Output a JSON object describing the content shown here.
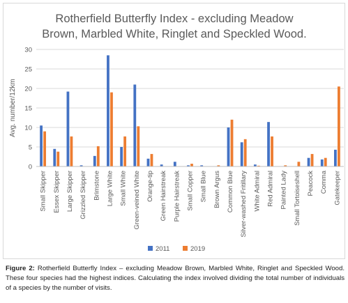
{
  "chart_data": {
    "type": "bar",
    "title": "Rotherfield Butterfly Index - excluding Meadow Brown, Marbled White, Ringlet and Speckled Wood.",
    "title_lines": [
      "Rotherfield Butterfly Index - excluding Meadow",
      "Brown, Marbled White, Ringlet and Speckled Wood."
    ],
    "xlabel": "",
    "ylabel": "Avg. number/12km",
    "ylim": [
      0,
      30
    ],
    "yticks": [
      0,
      5,
      10,
      15,
      20,
      25,
      30
    ],
    "grid": true,
    "legend_position": "bottom",
    "categories": [
      "Small Skipper",
      "Essex Skipper",
      "Large Skipper",
      "Grizzled Skipper",
      "Brimstone",
      "Large White",
      "Small White",
      "Green-veined White",
      "Orange-tip",
      "Green Hairstreak",
      "Purple Hairstreak",
      "Small Copper",
      "Small Blue",
      "Brown Argus",
      "Common Blue",
      "Silver-washed Fritillary",
      "White Admiral",
      "Red Admiral",
      "Painted Lady",
      "Small Tortoiseshell",
      "Peacock",
      "Comma",
      "Gatekeeper"
    ],
    "series": [
      {
        "name": "2011",
        "color": "#4472c4",
        "values": [
          10.5,
          4.5,
          19.2,
          0.3,
          2.7,
          28.5,
          5.0,
          21.0,
          2.0,
          0.5,
          1.2,
          0.3,
          0.3,
          0.0,
          10.0,
          6.2,
          0.5,
          11.4,
          0.0,
          0.0,
          2.2,
          1.8,
          4.3
        ]
      },
      {
        "name": "2019",
        "color": "#ed7d31",
        "values": [
          9.0,
          3.8,
          7.7,
          0.0,
          5.2,
          19.0,
          7.7,
          10.3,
          3.2,
          0.0,
          0.0,
          0.7,
          0.0,
          0.3,
          12.0,
          7.0,
          0.2,
          7.7,
          0.3,
          1.2,
          3.2,
          2.2,
          20.5
        ]
      }
    ]
  },
  "caption": {
    "label": "Figure 2:",
    "text": " Rotherfield Butterfly Index – excluding Meadow Brown, Marbled White, Ringlet and Speckled Wood. These four species had the highest indices. Calculating the index involved dividing the total number of individuals of a species by the number of visits."
  }
}
